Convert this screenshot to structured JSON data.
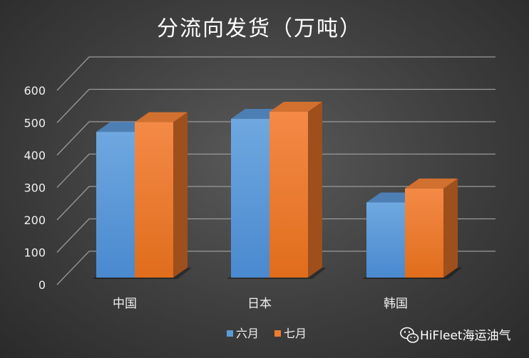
{
  "chart_data": {
    "type": "bar",
    "title": "分流向发货（万吨）",
    "categories": [
      "中国",
      "日本",
      "韩国"
    ],
    "series": [
      {
        "name": "六月",
        "values": [
          450,
          490,
          232
        ],
        "color": "#5b9bd5"
      },
      {
        "name": "七月",
        "values": [
          480,
          512,
          275
        ],
        "color": "#ed7d31"
      }
    ],
    "ylim": [
      0,
      600
    ],
    "yticks": [
      0,
      100,
      200,
      300,
      400,
      500,
      600
    ],
    "grid": true,
    "style": "3d-clustered-column",
    "legend_position": "bottom"
  },
  "watermark": {
    "text": "HiFleet海运油气",
    "icon": "wechat-icon"
  }
}
